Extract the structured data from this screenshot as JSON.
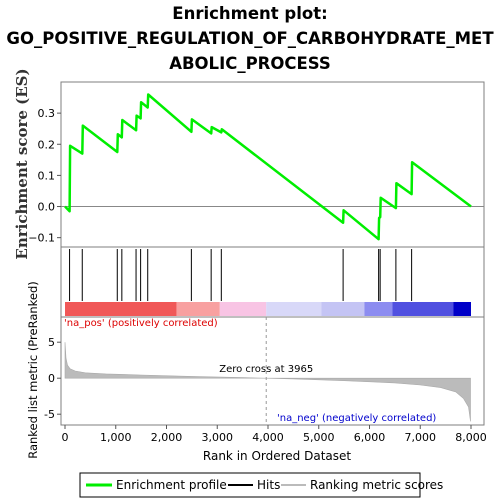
{
  "chart_data": {
    "type": "line",
    "title_lines": [
      "Enrichment plot:",
      "GO_POSITIVE_REGULATION_OF_CARBOHYDRATE_MET",
      "ABOLIC_PROCESS"
    ],
    "top_panel": {
      "ylabel": "Enrichment score (ES)",
      "ylim": [
        -0.13,
        0.4
      ],
      "yticks": [
        -0.1,
        0.0,
        0.1,
        0.2,
        0.3
      ],
      "ytick_labels": [
        "−0.1",
        "0.0",
        "0.1",
        "0.2",
        "0.3"
      ],
      "series": [
        {
          "name": "Enrichment profile",
          "color": "#00ee00",
          "x": [
            0,
            90,
            100,
            340,
            350,
            1030,
            1040,
            1120,
            1130,
            1400,
            1410,
            1490,
            1500,
            1630,
            1640,
            2490,
            2500,
            2880,
            2890,
            3080,
            3090,
            5480,
            5490,
            6180,
            6190,
            6210,
            6220,
            6520,
            6530,
            6830,
            6840,
            8000
          ],
          "y": [
            0.0,
            -0.015,
            0.195,
            0.17,
            0.26,
            0.175,
            0.232,
            0.222,
            0.278,
            0.245,
            0.292,
            0.283,
            0.335,
            0.318,
            0.36,
            0.24,
            0.28,
            0.235,
            0.255,
            0.238,
            0.248,
            -0.052,
            -0.012,
            -0.105,
            -0.037,
            -0.034,
            0.028,
            -0.005,
            0.075,
            0.04,
            0.142,
            0.0
          ]
        }
      ]
    },
    "hits": [
      90,
      340,
      1030,
      1120,
      1400,
      1490,
      1630,
      2490,
      2880,
      3080,
      5480,
      6180,
      6210,
      6520,
      6830
    ],
    "bottom_panel": {
      "ylabel": "Ranked list metric (PreRanked)",
      "xlabel": "Rank in Ordered Dataset",
      "xlim": [
        0,
        8000
      ],
      "xticks": [
        0,
        1000,
        2000,
        3000,
        4000,
        5000,
        6000,
        7000,
        8000
      ],
      "xtick_labels": [
        "0",
        "1,000",
        "2,000",
        "3,000",
        "4,000",
        "5,000",
        "6,000",
        "7,000",
        "8,000"
      ],
      "ylim": [
        -6.5,
        8.5
      ],
      "yticks": [
        -5,
        0,
        5
      ],
      "ytick_labels": [
        "-5",
        "0",
        "5"
      ],
      "metric_curve": {
        "x": [
          0,
          20,
          50,
          100,
          200,
          400,
          800,
          1500,
          2500,
          3500,
          3965,
          4500,
          5500,
          6500,
          7000,
          7400,
          7700,
          7850,
          7950,
          7990
        ],
        "y": [
          5.0,
          2.8,
          1.8,
          1.3,
          1.0,
          0.75,
          0.6,
          0.45,
          0.25,
          0.08,
          0.0,
          -0.1,
          -0.35,
          -0.65,
          -0.95,
          -1.3,
          -1.9,
          -2.8,
          -4.0,
          -6.0
        ]
      },
      "zero_cross_rank": 3965,
      "zero_cross_label": "Zero cross at 3965",
      "pos_label": "'na_pos' (positively correlated)",
      "neg_label": "'na_neg' (negatively correlated)",
      "pos_color": "#dd0000",
      "neg_color": "#0000cc"
    },
    "heat_bar": [
      {
        "from": 0,
        "to": 2200,
        "color": "#f05858"
      },
      {
        "from": 2200,
        "to": 3050,
        "color": "#f8a0a0"
      },
      {
        "from": 3050,
        "to": 3965,
        "color": "#f8c4e4"
      },
      {
        "from": 3965,
        "to": 5050,
        "color": "#d8d8f8"
      },
      {
        "from": 5050,
        "to": 5900,
        "color": "#c4c4f4"
      },
      {
        "from": 5900,
        "to": 6450,
        "color": "#8c8cf0"
      },
      {
        "from": 6450,
        "to": 7650,
        "color": "#5050e0"
      },
      {
        "from": 7650,
        "to": 8000,
        "color": "#0000c8"
      }
    ],
    "legend": [
      {
        "label": "Enrichment profile",
        "color": "#00ee00"
      },
      {
        "label": "Hits",
        "color": "#000000"
      },
      {
        "label": "Ranking metric scores",
        "color": "#bbbbbb"
      }
    ]
  }
}
